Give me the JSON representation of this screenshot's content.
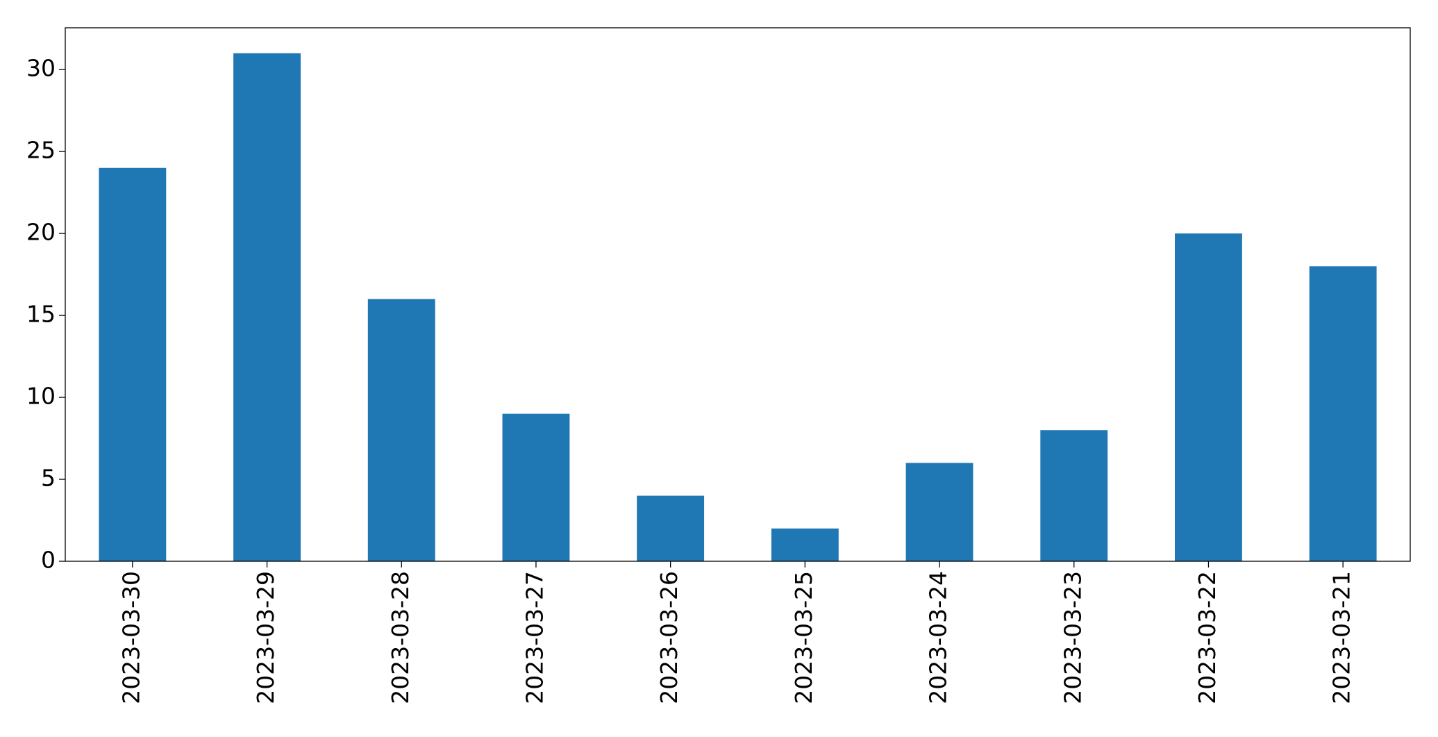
{
  "chart_data": {
    "type": "bar",
    "categories": [
      "2023-03-30",
      "2023-03-29",
      "2023-03-28",
      "2023-03-27",
      "2023-03-26",
      "2023-03-25",
      "2023-03-24",
      "2023-03-23",
      "2023-03-22",
      "2023-03-21"
    ],
    "values": [
      24,
      31,
      16,
      9,
      4,
      2,
      6,
      8,
      20,
      18
    ],
    "color": "#1f77b4",
    "ylim": [
      0,
      32.55
    ],
    "yticks": [
      0,
      5,
      10,
      15,
      20,
      25,
      30
    ],
    "grid": false
  }
}
